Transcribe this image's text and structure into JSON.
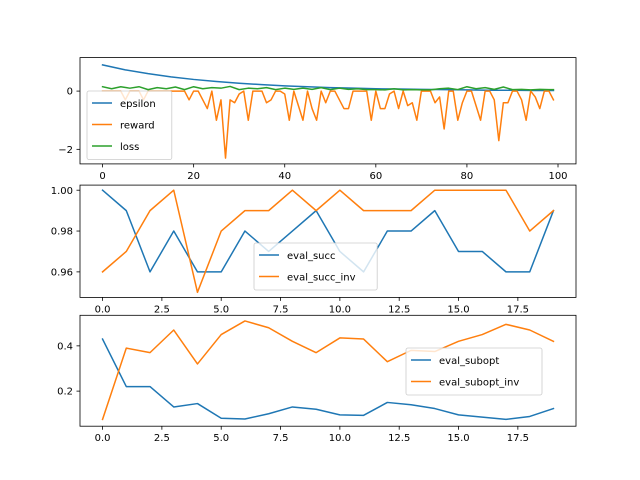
{
  "chart_data": [
    {
      "type": "line",
      "title": "",
      "xlabel": "",
      "ylabel": "",
      "xlim": [
        -4.95,
        103.95
      ],
      "ylim": [
        -2.5,
        1.15
      ],
      "xticks": [
        0,
        20,
        40,
        60,
        80,
        100
      ],
      "xtick_labels": [
        "0",
        "20",
        "40",
        "60",
        "80",
        "100"
      ],
      "yticks": [
        -2,
        0
      ],
      "ytick_labels": [
        "−2",
        "0"
      ],
      "legend_position": "lower-left",
      "series": [
        {
          "name": "epsilon",
          "color": "#1f77b4",
          "x": [
            0,
            5,
            10,
            15,
            20,
            25,
            30,
            35,
            40,
            45,
            50,
            55,
            60,
            65,
            70,
            75,
            80,
            85,
            90,
            95,
            99
          ],
          "y": [
            0.9,
            0.73,
            0.6,
            0.49,
            0.4,
            0.33,
            0.27,
            0.22,
            0.18,
            0.15,
            0.12,
            0.1,
            0.08,
            0.07,
            0.06,
            0.05,
            0.04,
            0.03,
            0.03,
            0.02,
            0.02
          ]
        },
        {
          "name": "reward",
          "color": "#ff7f0e",
          "x": [
            0,
            1,
            2,
            3,
            4,
            5,
            6,
            7,
            8,
            9,
            10,
            11,
            12,
            13,
            14,
            15,
            16,
            17,
            18,
            19,
            20,
            21,
            22,
            23,
            24,
            25,
            26,
            27,
            28,
            29,
            30,
            31,
            32,
            33,
            34,
            35,
            36,
            37,
            38,
            39,
            40,
            41,
            42,
            43,
            44,
            45,
            46,
            47,
            48,
            49,
            50,
            51,
            52,
            53,
            54,
            55,
            56,
            57,
            58,
            59,
            60,
            61,
            62,
            63,
            64,
            65,
            66,
            67,
            68,
            69,
            70,
            71,
            72,
            73,
            74,
            75,
            76,
            77,
            78,
            79,
            80,
            81,
            82,
            83,
            84,
            85,
            86,
            87,
            88,
            89,
            90,
            91,
            92,
            93,
            94,
            95,
            96,
            97,
            98,
            99
          ],
          "y": [
            0,
            0,
            0,
            0,
            0,
            -0.3,
            0,
            0,
            0,
            -0.3,
            0,
            0,
            0,
            0,
            0,
            0,
            0,
            0,
            0,
            -0.3,
            0,
            0,
            -0.3,
            -0.6,
            0,
            -1,
            -0.3,
            -2.3,
            -0.3,
            -0.4,
            -0.1,
            0,
            -1,
            0,
            0,
            0,
            -0.4,
            -0.3,
            0,
            0,
            -0.1,
            -1,
            0,
            -0.5,
            -1,
            0,
            -0.6,
            -1,
            0,
            -0.4,
            0,
            0,
            -0.3,
            -0.6,
            -0.6,
            0,
            0,
            0,
            0,
            -1,
            0,
            -0.6,
            -0.6,
            -0.1,
            0,
            -0.6,
            0,
            -0.5,
            -0.4,
            -1,
            0,
            0,
            0,
            -0.4,
            -0.2,
            -1.3,
            0,
            0,
            -1,
            -0.4,
            0,
            0,
            -0.5,
            -1,
            0,
            0,
            -0.3,
            -1.7,
            -0.4,
            -0.4,
            0,
            0,
            -0.3,
            -1,
            0,
            -0.2,
            -0.6,
            0,
            0,
            -0.3
          ]
        },
        {
          "name": "loss",
          "color": "#2ca02c",
          "x": [
            0,
            2,
            4,
            6,
            8,
            10,
            12,
            14,
            16,
            18,
            20,
            22,
            24,
            26,
            28,
            30,
            32,
            34,
            36,
            38,
            40,
            42,
            44,
            46,
            48,
            50,
            52,
            54,
            56,
            58,
            60,
            62,
            64,
            66,
            68,
            70,
            72,
            74,
            76,
            78,
            80,
            82,
            84,
            86,
            88,
            90,
            92,
            94,
            96,
            98,
            99
          ],
          "y": [
            0.15,
            0.08,
            0.15,
            0.1,
            0.15,
            0.05,
            0.12,
            0.08,
            0.14,
            0.05,
            0.15,
            0.08,
            0.12,
            0.1,
            0.16,
            0.05,
            0.1,
            0.08,
            0.12,
            0.05,
            0.1,
            0.06,
            0.1,
            0.06,
            0.12,
            0.05,
            0.1,
            0.06,
            0.08,
            0.05,
            0.05,
            0.04,
            0.08,
            0.04,
            0.05,
            0.04,
            0.04,
            0.08,
            0.1,
            0.05,
            0.15,
            0.08,
            0.12,
            0.06,
            0.14,
            0.05,
            0.06,
            0.04,
            0.06,
            0.05,
            0.05
          ]
        }
      ]
    },
    {
      "type": "line",
      "title": "",
      "xlabel": "",
      "ylabel": "",
      "xlim": [
        -0.95,
        19.95
      ],
      "ylim": [
        0.9475,
        1.0025
      ],
      "xticks": [
        0,
        2.5,
        5,
        7.5,
        10,
        12.5,
        15,
        17.5
      ],
      "xtick_labels": [
        "0.0",
        "2.5",
        "5.0",
        "7.5",
        "10.0",
        "12.5",
        "15.0",
        "17.5"
      ],
      "yticks": [
        0.96,
        0.98,
        1.0
      ],
      "ytick_labels": [
        "0.96",
        "0.98",
        "1.00"
      ],
      "legend_position": "center-right",
      "series": [
        {
          "name": "eval_succ",
          "color": "#1f77b4",
          "x": [
            0,
            1,
            2,
            3,
            4,
            5,
            6,
            7,
            8,
            9,
            10,
            11,
            12,
            13,
            14,
            15,
            16,
            17,
            18,
            19
          ],
          "y": [
            1.0,
            0.99,
            0.96,
            0.98,
            0.96,
            0.96,
            0.98,
            0.97,
            0.98,
            0.99,
            0.97,
            0.96,
            0.98,
            0.98,
            0.99,
            0.97,
            0.97,
            0.96,
            0.96,
            0.99
          ]
        },
        {
          "name": "eval_succ_inv",
          "color": "#ff7f0e",
          "x": [
            0,
            1,
            2,
            3,
            4,
            5,
            6,
            7,
            8,
            9,
            10,
            11,
            12,
            13,
            14,
            15,
            16,
            17,
            18,
            19
          ],
          "y": [
            0.96,
            0.97,
            0.99,
            1.0,
            0.95,
            0.98,
            0.99,
            0.99,
            1.0,
            0.99,
            1.0,
            0.99,
            0.99,
            0.99,
            1.0,
            1.0,
            1.0,
            1.0,
            0.98,
            0.99
          ]
        }
      ]
    },
    {
      "type": "line",
      "title": "",
      "xlabel": "",
      "ylabel": "",
      "xlim": [
        -0.95,
        19.95
      ],
      "ylim": [
        0.045,
        0.535
      ],
      "xticks": [
        0,
        2.5,
        5,
        7.5,
        10,
        12.5,
        15,
        17.5
      ],
      "xtick_labels": [
        "0.0",
        "2.5",
        "5.0",
        "7.5",
        "10.0",
        "12.5",
        "15.0",
        "17.5"
      ],
      "yticks": [
        0.2,
        0.4
      ],
      "ytick_labels": [
        "0.2",
        "0.4"
      ],
      "legend_position": "center-right",
      "series": [
        {
          "name": "eval_subopt",
          "color": "#1f77b4",
          "x": [
            0,
            1,
            2,
            3,
            4,
            5,
            6,
            7,
            8,
            9,
            10,
            11,
            12,
            13,
            14,
            15,
            16,
            17,
            18,
            19
          ],
          "y": [
            0.43,
            0.22,
            0.22,
            0.13,
            0.145,
            0.08,
            0.077,
            0.1,
            0.13,
            0.12,
            0.095,
            0.093,
            0.15,
            0.14,
            0.123,
            0.095,
            0.085,
            0.075,
            0.088,
            0.123
          ]
        },
        {
          "name": "eval_subopt_inv",
          "color": "#ff7f0e",
          "x": [
            0,
            1,
            2,
            3,
            4,
            5,
            6,
            7,
            8,
            9,
            10,
            11,
            12,
            13,
            14,
            15,
            16,
            17,
            18,
            19
          ],
          "y": [
            0.075,
            0.39,
            0.37,
            0.47,
            0.32,
            0.45,
            0.51,
            0.48,
            0.42,
            0.37,
            0.435,
            0.43,
            0.33,
            0.38,
            0.375,
            0.42,
            0.45,
            0.495,
            0.47,
            0.42
          ]
        }
      ]
    }
  ]
}
